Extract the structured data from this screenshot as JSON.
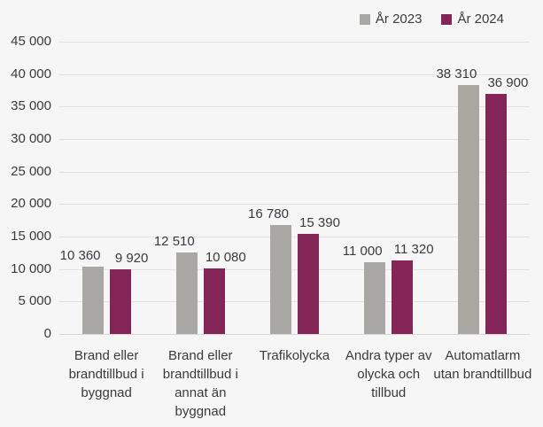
{
  "chart_data": {
    "type": "bar",
    "title": "",
    "xlabel": "",
    "ylabel": "",
    "categories": [
      "Brand eller brandtillbud i byggnad",
      "Brand eller brandtillbud i annat än byggnad",
      "Trafikolycka",
      "Andra typer av olycka och tillbud",
      "Automatlarm utan brandtillbud"
    ],
    "series": [
      {
        "name": "År 2023",
        "color": "#a9a8a4",
        "values": [
          10360,
          12510,
          16780,
          11000,
          38310
        ]
      },
      {
        "name": "År 2024",
        "color": "#852457",
        "values": [
          9920,
          10080,
          15390,
          11320,
          36900
        ]
      }
    ],
    "value_labels": [
      [
        "10 360",
        "12 510",
        "16 780",
        "11 000",
        "38 310"
      ],
      [
        "9 920",
        "10 080",
        "15 390",
        "11 320",
        "36 900"
      ]
    ],
    "ylim": [
      0,
      45000
    ],
    "ytick_step": 5000,
    "ytick_labels": [
      "0",
      "5 000",
      "10 000",
      "15 000",
      "20 000",
      "25 000",
      "30 000",
      "35 000",
      "40 000",
      "45 000"
    ],
    "grid": true,
    "legend_position": "top-right"
  },
  "colors": {
    "background": "#f6f6f6",
    "gridline": "#e2e2e2",
    "baseline": "#d7d7d7",
    "text": "#3b3a39",
    "series_2023": "#a9a8a4",
    "series_2024": "#852457"
  }
}
